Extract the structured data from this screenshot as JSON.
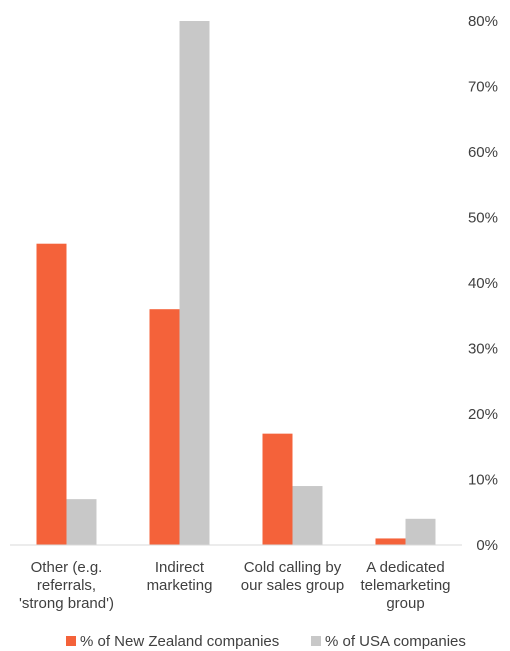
{
  "chart_data": {
    "type": "bar",
    "categories": [
      [
        "Other (e.g.",
        "referrals,",
        "'strong brand')"
      ],
      [
        "Indirect",
        "marketing"
      ],
      [
        "Cold calling by",
        "our sales group"
      ],
      [
        "A dedicated",
        "telemarketing",
        "group"
      ]
    ],
    "series": [
      {
        "name": "% of New Zealand companies",
        "color": "#F4623A",
        "values": [
          46,
          36,
          17,
          1
        ]
      },
      {
        "name": "% of USA companies",
        "color": "#C8C8C8",
        "values": [
          7,
          80,
          9,
          4
        ]
      }
    ],
    "ylim": [
      0,
      80
    ],
    "yticks": [
      "0%",
      "10%",
      "20%",
      "30%",
      "40%",
      "50%",
      "60%",
      "70%",
      "80%"
    ],
    "y_axis_side": "right",
    "grid": false,
    "legend_position": "bottom"
  }
}
